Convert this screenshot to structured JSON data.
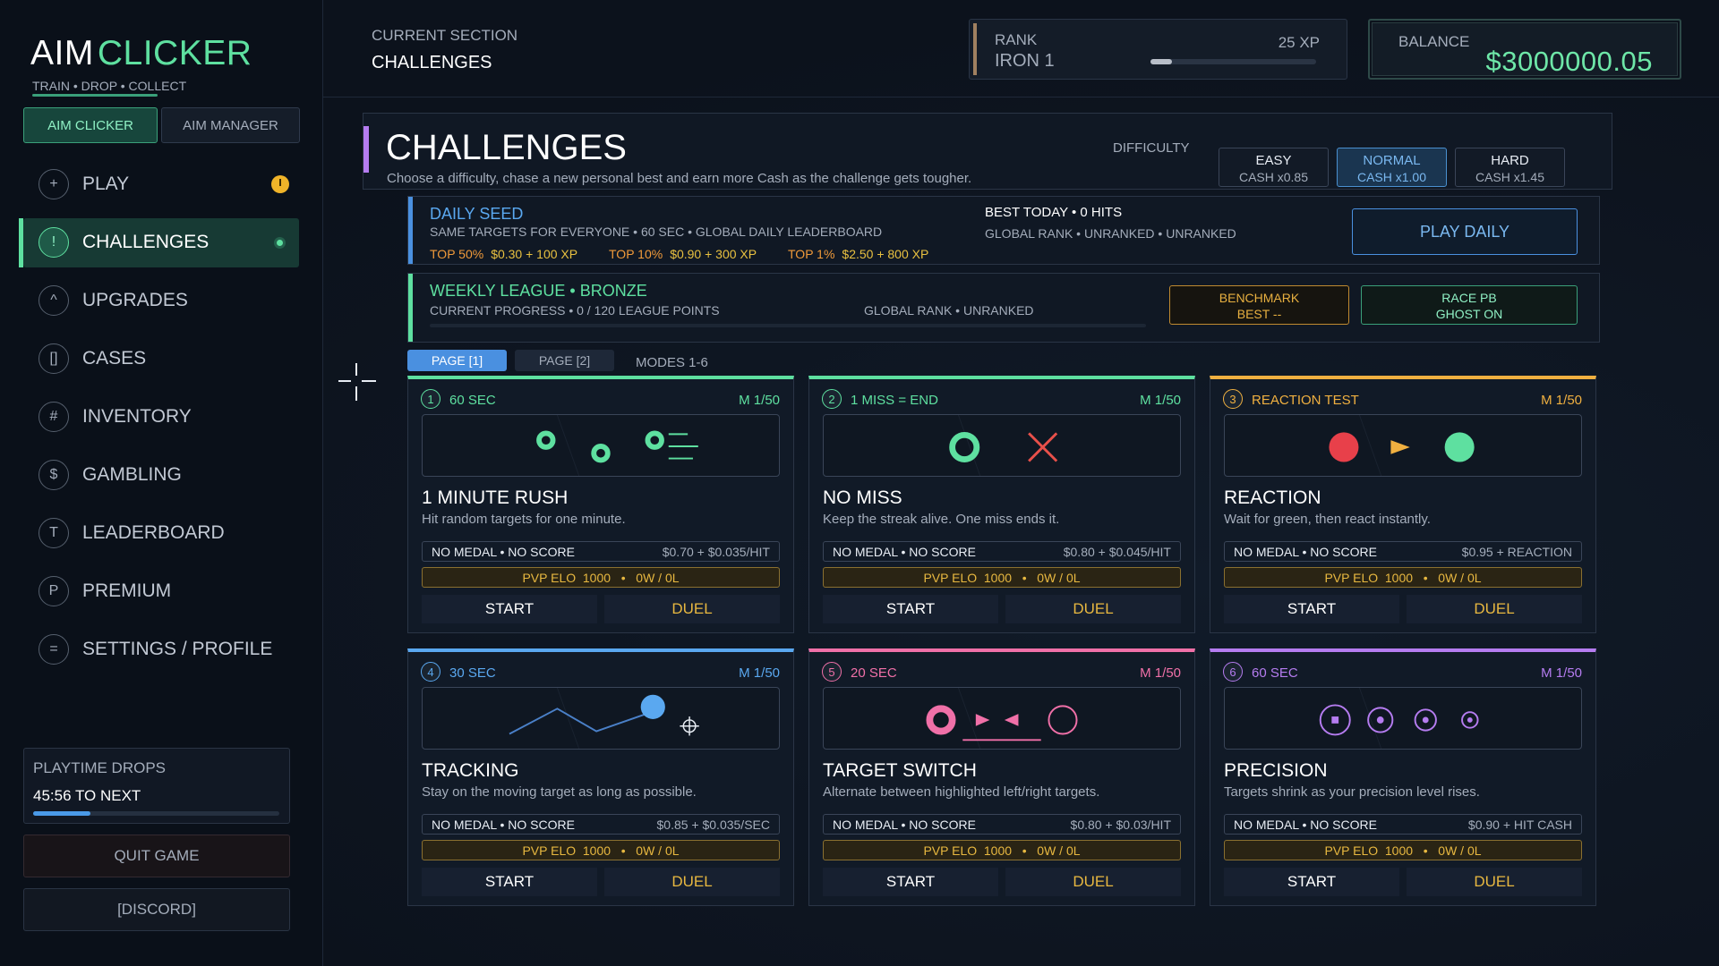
{
  "sidebar": {
    "logo": {
      "part1": "AIM",
      "part2": "CLICKER"
    },
    "tagline": "TRAIN • DROP • COLLECT",
    "tabs": [
      "AIM CLICKER",
      "AIM MANAGER"
    ],
    "nav": [
      {
        "icon": "+",
        "label": "PLAY"
      },
      {
        "icon": "!",
        "label": "CHALLENGES"
      },
      {
        "icon": "^",
        "label": "UPGRADES"
      },
      {
        "icon": "[]",
        "label": "CASES"
      },
      {
        "icon": "#",
        "label": "INVENTORY"
      },
      {
        "icon": "$",
        "label": "GAMBLING"
      },
      {
        "icon": "T",
        "label": "LEADERBOARD"
      },
      {
        "icon": "P",
        "label": "PREMIUM"
      },
      {
        "icon": "=",
        "label": "SETTINGS / PROFILE"
      }
    ],
    "playtime": {
      "title": "PLAYTIME DROPS",
      "next": "45:56 TO NEXT"
    },
    "quit": "QUIT GAME",
    "discord": "[DISCORD]"
  },
  "header": {
    "section_label": "CURRENT SECTION",
    "section": "CHALLENGES",
    "rank": {
      "label": "RANK",
      "tier": "IRON 1",
      "xp": "25 XP"
    },
    "balance": {
      "label": "BALANCE",
      "amount": "$3000000.05"
    }
  },
  "challenges": {
    "title": "CHALLENGES",
    "subtitle": "Choose a difficulty, chase a new personal best and earn more Cash as the challenge gets tougher.",
    "difficulty_label": "DIFFICULTY",
    "difficulties": [
      {
        "name": "EASY",
        "cash": "CASH x0.85"
      },
      {
        "name": "NORMAL",
        "cash": "CASH x1.00"
      },
      {
        "name": "HARD",
        "cash": "CASH x1.45"
      }
    ]
  },
  "daily": {
    "title": "DAILY SEED",
    "description": "SAME TARGETS FOR EVERYONE  •  60 SEC  •  GLOBAL DAILY LEADERBOARD",
    "best": "BEST TODAY  •  0 HITS",
    "rank": "GLOBAL RANK  •  UNRANKED  •  UNRANKED",
    "rewards": [
      {
        "tier": "TOP 50%",
        "reward": "$0.30 + 100 XP"
      },
      {
        "tier": "TOP 10%",
        "reward": "$0.90 + 300 XP"
      },
      {
        "tier": "TOP 1%",
        "reward": "$2.50 + 800 XP"
      }
    ],
    "button": "PLAY DAILY"
  },
  "weekly": {
    "title": "WEEKLY LEAGUE  •  BRONZE",
    "progress": "CURRENT PROGRESS  •  0 / 120 LEAGUE POINTS",
    "rank": "GLOBAL RANK  •  UNRANKED",
    "benchmark": {
      "title": "BENCHMARK",
      "value": "BEST  --"
    },
    "race": {
      "title": "RACE PB",
      "value": "GHOST ON"
    }
  },
  "pages": [
    "PAGE [1]",
    "PAGE [2]"
  ],
  "modes": "MODES 1-6",
  "cards": [
    {
      "number": "1",
      "duration": "60 SEC",
      "medals": "M 1/50",
      "title": "1 MINUTE RUSH",
      "description": "Hit random targets for one minute.",
      "status": "NO MEDAL  •  NO SCORE",
      "reward": "$0.70 + $0.035/HIT",
      "pvp": "PVP ELO  1000   •   0W / 0L",
      "start": "START",
      "duel": "DUEL"
    },
    {
      "number": "2",
      "duration": "1 MISS = END",
      "medals": "M 1/50",
      "title": "NO MISS",
      "description": "Keep the streak alive. One miss ends it.",
      "status": "NO MEDAL  •  NO SCORE",
      "reward": "$0.80 + $0.045/HIT",
      "pvp": "PVP ELO  1000   •   0W / 0L",
      "start": "START",
      "duel": "DUEL"
    },
    {
      "number": "3",
      "duration": "REACTION TEST",
      "medals": "M 1/50",
      "title": "REACTION",
      "description": "Wait for green, then react instantly.",
      "status": "NO MEDAL  •  NO SCORE",
      "reward": "$0.95 + REACTION",
      "pvp": "PVP ELO  1000   •   0W / 0L",
      "start": "START",
      "duel": "DUEL"
    },
    {
      "number": "4",
      "duration": "30 SEC",
      "medals": "M 1/50",
      "title": "TRACKING",
      "description": "Stay on the moving target as long as possible.",
      "status": "NO MEDAL  •  NO SCORE",
      "reward": "$0.85 + $0.035/SEC",
      "pvp": "PVP ELO  1000   •   0W / 0L",
      "start": "START",
      "duel": "DUEL"
    },
    {
      "number": "5",
      "duration": "20 SEC",
      "medals": "M 1/50",
      "title": "TARGET SWITCH",
      "description": "Alternate between highlighted left/right targets.",
      "status": "NO MEDAL  •  NO SCORE",
      "reward": "$0.80 + $0.03/HIT",
      "pvp": "PVP ELO  1000   •   0W / 0L",
      "start": "START",
      "duel": "DUEL"
    },
    {
      "number": "6",
      "duration": "60 SEC",
      "medals": "M 1/50",
      "title": "PRECISION",
      "description": "Targets shrink as your precision level rises.",
      "status": "NO MEDAL  •  NO SCORE",
      "reward": "$0.90 + HIT CASH",
      "pvp": "PVP ELO  1000   •   0W / 0L",
      "start": "START",
      "duel": "DUEL"
    }
  ]
}
